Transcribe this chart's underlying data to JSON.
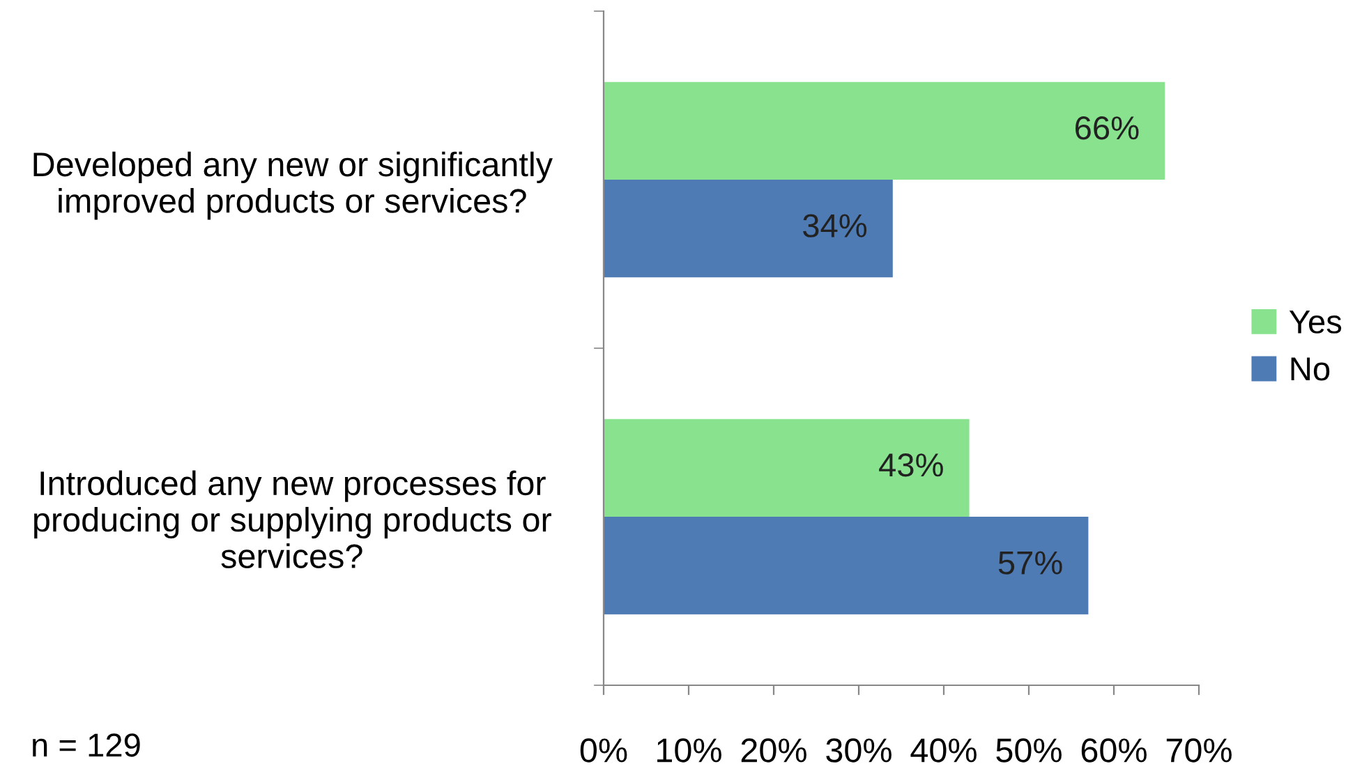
{
  "chart_data": {
    "type": "bar",
    "orientation": "horizontal",
    "categories": [
      "Developed any new or significantly\nimproved products or services?",
      "Introduced any new processes for\nproducing or supplying products or\nservices?"
    ],
    "series": [
      {
        "name": "Yes",
        "color": "#88e28e",
        "values": [
          66,
          43
        ],
        "value_labels": [
          "66%",
          "43%"
        ]
      },
      {
        "name": "No",
        "color": "#4f7bb5",
        "values": [
          34,
          57
        ],
        "value_labels": [
          "34%",
          "57%"
        ]
      }
    ],
    "xlim": [
      0,
      70
    ],
    "xticks": [
      {
        "value": 0,
        "label": "0%"
      },
      {
        "value": 10,
        "label": "10%"
      },
      {
        "value": 20,
        "label": "20%"
      },
      {
        "value": 30,
        "label": "30%"
      },
      {
        "value": 40,
        "label": "40%"
      },
      {
        "value": 50,
        "label": "50%"
      },
      {
        "value": 60,
        "label": "60%"
      },
      {
        "value": 70,
        "label": "70%"
      }
    ],
    "legend": "right",
    "grid": false,
    "annotations": [
      "n = 129"
    ]
  }
}
